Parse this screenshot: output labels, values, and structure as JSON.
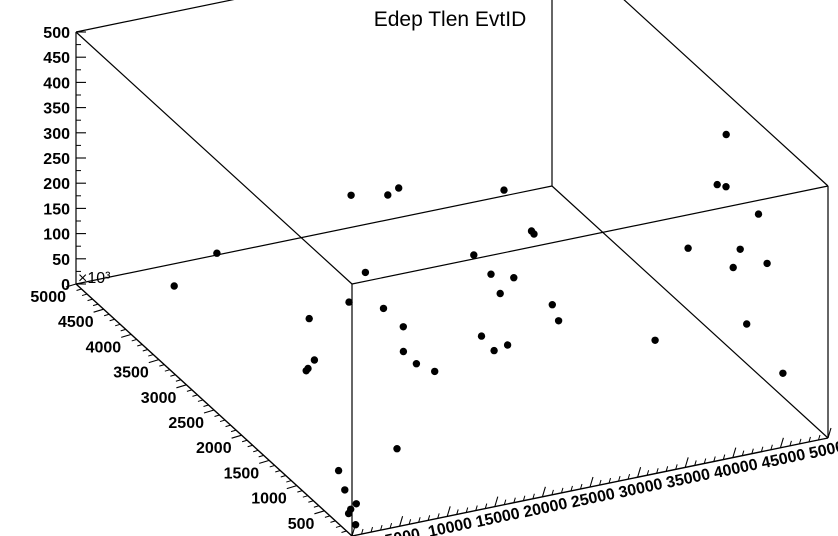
{
  "chart_data": {
    "type": "scatter",
    "title": "Edep Tlen EvtID",
    "xlabel": "",
    "ylabel": "",
    "zlabel": "",
    "x_range": [
      0,
      50000
    ],
    "y_range": [
      0,
      5000
    ],
    "z_range": [
      0,
      500
    ],
    "z_exponent_label": "×10³",
    "x_ticks": [
      "0",
      "5000",
      "10000",
      "15000",
      "20000",
      "25000",
      "30000",
      "35000",
      "40000",
      "45000",
      "50000"
    ],
    "y_ticks": [
      "0",
      "500",
      "1000",
      "1500",
      "2000",
      "2500",
      "3000",
      "3500",
      "4000",
      "4500",
      "5000"
    ],
    "z_ticks": [
      "0",
      "50",
      "100",
      "150",
      "200",
      "250",
      "300",
      "350",
      "400",
      "450",
      "500"
    ],
    "marker": "filled circle",
    "marker_color": "#000000",
    "grid": false,
    "legend": "none",
    "series": [
      {
        "points": [
          [
            300,
            2500,
            310
          ],
          [
            9400,
            1050,
            310
          ],
          [
            14400,
            2500,
            370
          ],
          [
            17100,
            2300,
            380
          ],
          [
            21200,
            1450,
            330
          ],
          [
            21100,
            820,
            215
          ],
          [
            21300,
            1100,
            175
          ],
          [
            22300,
            1500,
            160
          ],
          [
            22500,
            950,
            330
          ],
          [
            23200,
            750,
            440
          ],
          [
            23500,
            1300,
            465
          ],
          [
            25500,
            1100,
            390
          ],
          [
            900,
            90,
            10
          ],
          [
            500,
            110,
            40
          ],
          [
            400,
            130,
            30
          ],
          [
            400,
            200,
            70
          ],
          [
            600,
            900,
            240
          ],
          [
            700,
            950,
            230
          ],
          [
            1200,
            450,
            80
          ],
          [
            1500,
            180,
            40
          ],
          [
            6200,
            1750,
            150
          ],
          [
            8000,
            4600,
            5
          ],
          [
            11100,
            1100,
            20
          ],
          [
            15800,
            3500,
            20
          ],
          [
            16500,
            2900,
            110
          ],
          [
            17000,
            2000,
            100
          ],
          [
            17200,
            1800,
            95
          ],
          [
            18800,
            3000,
            150
          ],
          [
            19300,
            2400,
            100
          ],
          [
            19700,
            1900,
            60
          ],
          [
            26000,
            1800,
            200
          ],
          [
            28000,
            1200,
            230
          ],
          [
            27500,
            1000,
            220
          ],
          [
            31000,
            4500,
            120
          ],
          [
            32000,
            3000,
            95
          ],
          [
            33000,
            200,
            240
          ],
          [
            43000,
            800,
            450
          ],
          [
            44500,
            900,
            430
          ],
          [
            46000,
            900,
            300
          ],
          [
            47000,
            1200,
            230
          ],
          [
            48000,
            1500,
            460
          ],
          [
            46500,
            500,
            310
          ],
          [
            47000,
            300,
            110
          ],
          [
            48500,
            1000,
            350
          ],
          [
            49000,
            1300,
            100
          ],
          [
            44000,
            1500,
            250
          ]
        ]
      }
    ]
  }
}
